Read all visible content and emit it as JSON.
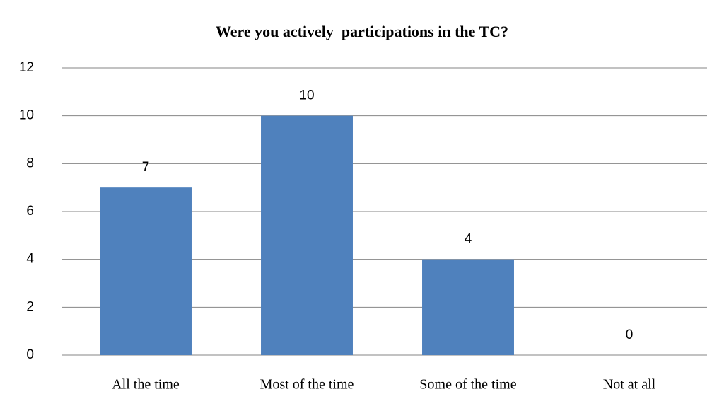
{
  "chart_data": {
    "type": "bar",
    "title": "Were you actively  participations in the TC?",
    "categories": [
      "All the time",
      "Most of the time",
      "Some of the time",
      "Not at all"
    ],
    "values": [
      7,
      10,
      4,
      0
    ],
    "color": "#4f81bd",
    "ylim": [
      0,
      12
    ],
    "yticks": [
      0,
      2,
      4,
      6,
      8,
      10,
      12
    ],
    "grid": true
  }
}
